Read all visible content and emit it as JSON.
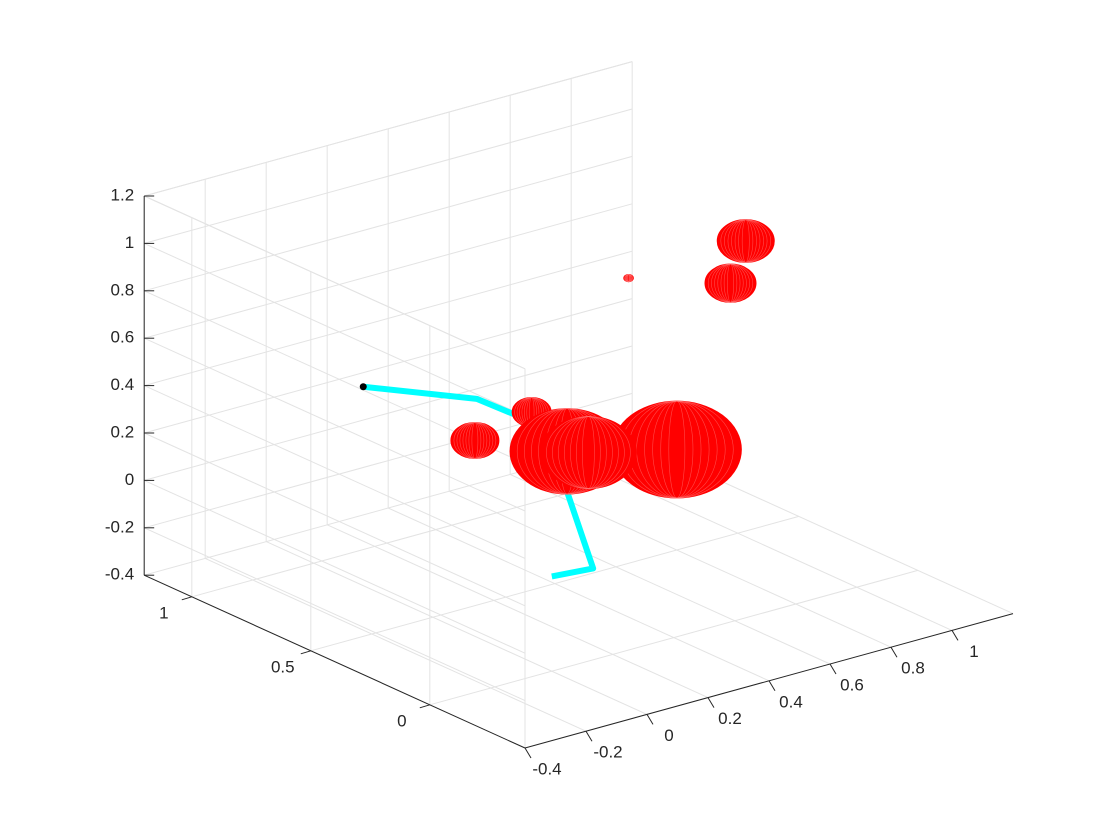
{
  "chart_data": {
    "type": "3d",
    "xlim": [
      -0.4,
      1.2
    ],
    "ylim": [
      -0.4,
      1.2
    ],
    "zlim": [
      -0.4,
      1.2
    ],
    "xticks": [
      -0.4,
      -0.2,
      0,
      0.2,
      0.4,
      0.6,
      0.8,
      1
    ],
    "yticks": [
      0,
      0.5,
      1
    ],
    "zticks": [
      -0.4,
      -0.2,
      0,
      0.2,
      0.4,
      0.6,
      0.8,
      1,
      1.2
    ],
    "grid": true,
    "arm": {
      "color": "#00ffff",
      "end_color": "#000000",
      "x": [
        0,
        0.12,
        0.05,
        -0.07,
        -0.09,
        -0.15
      ],
      "y": [
        0,
        -0.02,
        0,
        0,
        0.2,
        0.6
      ],
      "z": [
        0,
        0,
        0.34,
        0.68,
        0.69,
        0.58
      ]
    },
    "spheres": {
      "color": "#ff0000",
      "x": [
        0.87,
        0.82,
        0.72,
        0.09,
        0.06,
        0.41,
        0.05,
        0.12
      ],
      "y": [
        0.3,
        0.3,
        0.6,
        0.2,
        0.4,
        0,
        0,
        0
      ],
      "z": [
        0.97,
        0.81,
        0.73,
        0.57,
        0.37,
        0.39,
        0.51,
        0.48
      ],
      "r": [
        0.095,
        0.085,
        0.016,
        0.065,
        0.08,
        0.215,
        0.19,
        0.16
      ]
    }
  }
}
